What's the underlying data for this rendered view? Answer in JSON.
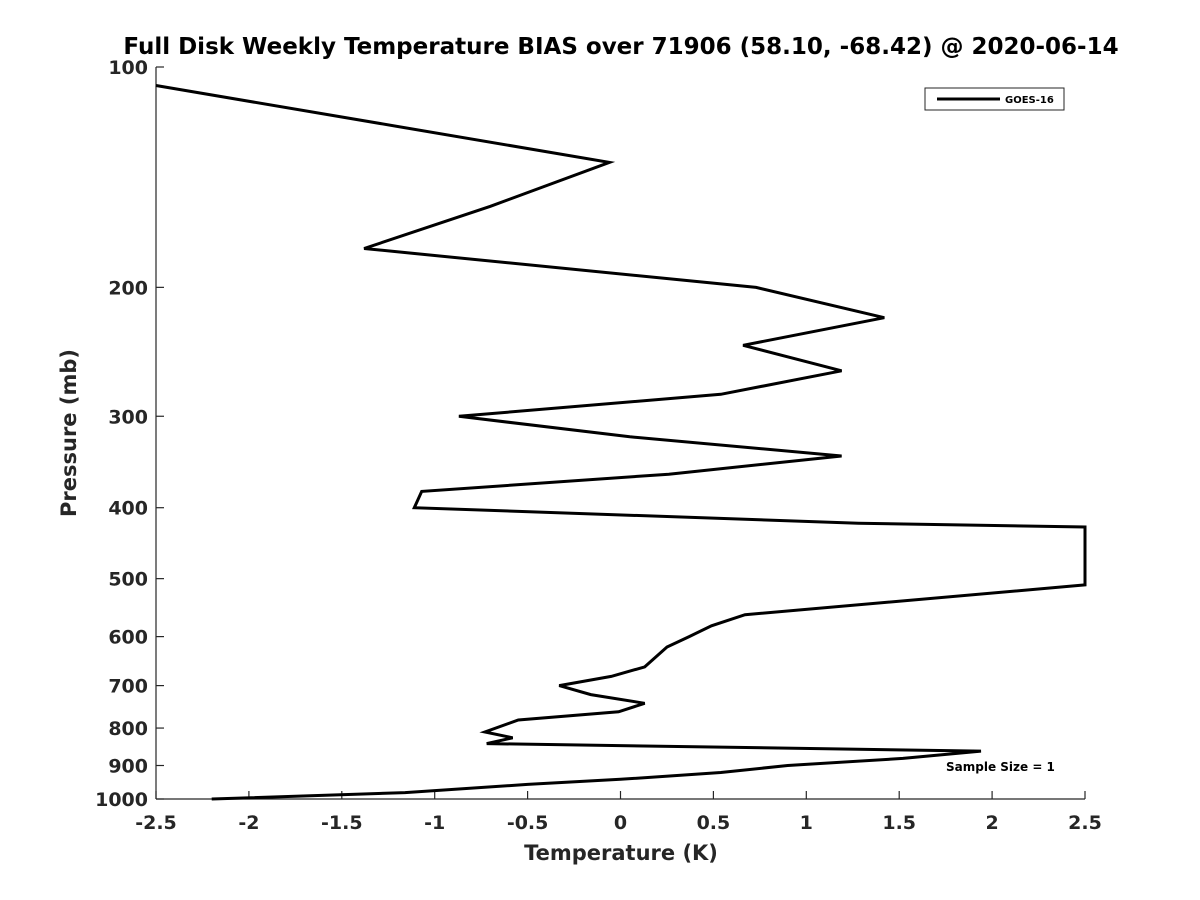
{
  "chart_data": {
    "type": "line",
    "title": "Full Disk Weekly Temperature BIAS over 71906 (58.10, -68.42) @ 2020-06-14",
    "xlabel": "Temperature (K)",
    "ylabel": "Pressure (mb)",
    "xlim": [
      -2.5,
      2.5
    ],
    "ylim": [
      100,
      1000
    ],
    "y_scale": "log",
    "y_reversed": true,
    "x_ticks": [
      -2.5,
      -2,
      -1.5,
      -1,
      -0.5,
      0,
      0.5,
      1,
      1.5,
      2,
      2.5
    ],
    "x_tick_labels": [
      "-2.5",
      "-2",
      "-1.5",
      "-1",
      "-0.5",
      "0",
      "0.5",
      "1",
      "1.5",
      "2",
      "2.5"
    ],
    "y_ticks": [
      100,
      200,
      300,
      400,
      500,
      600,
      700,
      800,
      900,
      1000
    ],
    "y_tick_labels": [
      "100",
      "200",
      "300",
      "400",
      "500",
      "600",
      "700",
      "800",
      "900",
      "1000"
    ],
    "grid": false,
    "legend_position": "top-right",
    "series": [
      {
        "name": "GOES-16",
        "color": "#000000",
        "points": [
          {
            "x": -2.5,
            "y": 106
          },
          {
            "x": -0.06,
            "y": 135
          },
          {
            "x": -0.7,
            "y": 155
          },
          {
            "x": -1.38,
            "y": 177
          },
          {
            "x": 0.73,
            "y": 200
          },
          {
            "x": 1.42,
            "y": 220
          },
          {
            "x": 0.66,
            "y": 240
          },
          {
            "x": 1.19,
            "y": 260
          },
          {
            "x": 0.54,
            "y": 280
          },
          {
            "x": -0.87,
            "y": 300
          },
          {
            "x": 0.05,
            "y": 320
          },
          {
            "x": 1.19,
            "y": 340
          },
          {
            "x": 0.26,
            "y": 360
          },
          {
            "x": -1.07,
            "y": 380
          },
          {
            "x": -1.11,
            "y": 400
          },
          {
            "x": 1.28,
            "y": 420
          },
          {
            "x": 2.5,
            "y": 425
          },
          {
            "x": 2.5,
            "y": 510
          },
          {
            "x": 0.67,
            "y": 560
          },
          {
            "x": 0.49,
            "y": 580
          },
          {
            "x": 0.37,
            "y": 600
          },
          {
            "x": 0.25,
            "y": 620
          },
          {
            "x": 0.13,
            "y": 660
          },
          {
            "x": -0.05,
            "y": 680
          },
          {
            "x": -0.33,
            "y": 700
          },
          {
            "x": -0.16,
            "y": 720
          },
          {
            "x": 0.13,
            "y": 740
          },
          {
            "x": -0.01,
            "y": 760
          },
          {
            "x": -0.55,
            "y": 780
          },
          {
            "x": -0.73,
            "y": 810
          },
          {
            "x": -0.58,
            "y": 825
          },
          {
            "x": -0.72,
            "y": 840
          },
          {
            "x": 1.94,
            "y": 860
          },
          {
            "x": 1.52,
            "y": 880
          },
          {
            "x": 0.9,
            "y": 900
          },
          {
            "x": 0.54,
            "y": 920
          },
          {
            "x": 0.0,
            "y": 940
          },
          {
            "x": -0.5,
            "y": 955
          },
          {
            "x": -1.16,
            "y": 980
          },
          {
            "x": -2.2,
            "y": 1000
          }
        ]
      }
    ],
    "annotation": "Sample Size = 1"
  }
}
